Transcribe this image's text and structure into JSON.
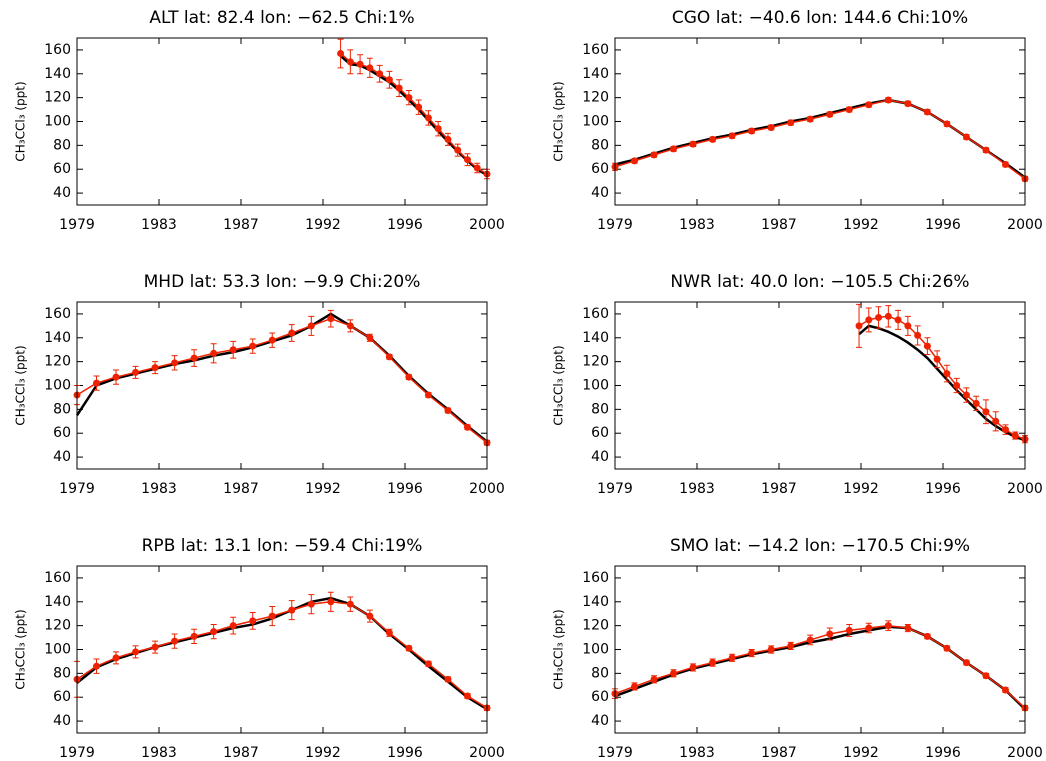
{
  "chart_data": [
    {
      "type": "line",
      "title": "ALT lat: 82.4 lon: −62.5 Chi:1%",
      "y_label": "CH₃CCl₃ (ppt)",
      "xlim": [
        1979,
        2000
      ],
      "xticks": [
        1979,
        {
          "value": 1983.2,
          "label": "1983"
        },
        {
          "value": 1987.4,
          "label": "1987"
        },
        {
          "value": 1991.6,
          "label": "1992"
        },
        {
          "value": 1995.8,
          "label": "1996"
        },
        2000
      ],
      "ylim": [
        30,
        170
      ],
      "yticks": [
        40,
        60,
        80,
        100,
        120,
        140,
        160
      ],
      "x": [
        1992.5,
        1993,
        1993.5,
        1994,
        1994.5,
        1995,
        1995.5,
        1996,
        1996.5,
        1997,
        1997.5,
        1998,
        1998.5,
        1999,
        1999.5,
        2000
      ],
      "series": [
        {
          "color": "#000000",
          "values": [
            155,
            148,
            147,
            143,
            138,
            133,
            126,
            118,
            110,
            101,
            92,
            83,
            75,
            67,
            60,
            55
          ]
        },
        {
          "color": "#ee2200",
          "values": [
            157,
            150,
            148,
            145,
            140,
            135,
            128,
            120,
            112,
            103,
            94,
            85,
            76,
            68,
            61,
            56
          ],
          "errors": [
            12,
            10,
            8,
            8,
            7,
            7,
            7,
            6,
            6,
            6,
            6,
            5,
            5,
            5,
            4,
            4
          ]
        }
      ]
    },
    {
      "type": "line",
      "title": "CGO lat: −40.6 lon: 144.6 Chi:10%",
      "y_label": "CH₃CCl₃ (ppt)",
      "xlim": [
        1979,
        2000
      ],
      "xticks": [
        1979,
        {
          "value": 1983.2,
          "label": "1983"
        },
        {
          "value": 1987.4,
          "label": "1987"
        },
        {
          "value": 1991.6,
          "label": "1992"
        },
        {
          "value": 1995.8,
          "label": "1996"
        },
        2000
      ],
      "ylim": [
        30,
        170
      ],
      "yticks": [
        40,
        60,
        80,
        100,
        120,
        140,
        160
      ],
      "x": [
        1979,
        1980,
        1981,
        1982,
        1983,
        1984,
        1985,
        1986,
        1987,
        1988,
        1989,
        1990,
        1991,
        1992,
        1993,
        1994,
        1995,
        1996,
        1997,
        1998,
        1999,
        2000
      ],
      "series": [
        {
          "color": "#000000",
          "values": [
            64,
            68,
            73,
            78,
            82,
            86,
            89,
            93,
            96,
            100,
            103,
            107,
            111,
            115,
            118,
            115,
            108,
            98,
            87,
            76,
            65,
            53
          ]
        },
        {
          "color": "#ee2200",
          "values": [
            62,
            67,
            72,
            77,
            81,
            85,
            88,
            92,
            95,
            99,
            102,
            106,
            110,
            114,
            118,
            115,
            108,
            98,
            87,
            76,
            64,
            52
          ],
          "errors": [
            3,
            2,
            2,
            2,
            2,
            2,
            2,
            2,
            2,
            2,
            2,
            2,
            2,
            2,
            2,
            2,
            2,
            2,
            2,
            2,
            2,
            2
          ]
        }
      ]
    },
    {
      "type": "line",
      "title": "MHD lat: 53.3 lon: −9.9 Chi:20%",
      "y_label": "CH₃CCl₃ (ppt)",
      "xlim": [
        1979,
        2000
      ],
      "xticks": [
        1979,
        {
          "value": 1983.2,
          "label": "1983"
        },
        {
          "value": 1987.4,
          "label": "1987"
        },
        {
          "value": 1991.6,
          "label": "1992"
        },
        {
          "value": 1995.8,
          "label": "1996"
        },
        2000
      ],
      "ylim": [
        30,
        170
      ],
      "yticks": [
        40,
        60,
        80,
        100,
        120,
        140,
        160
      ],
      "x": [
        1979,
        1980,
        1981,
        1982,
        1983,
        1984,
        1985,
        1986,
        1987,
        1988,
        1989,
        1990,
        1991,
        1992,
        1993,
        1994,
        1995,
        1996,
        1997,
        1998,
        1999,
        2000
      ],
      "series": [
        {
          "color": "#000000",
          "values": [
            75,
            100,
            106,
            110,
            114,
            118,
            121,
            125,
            128,
            132,
            137,
            142,
            150,
            160,
            150,
            140,
            125,
            108,
            93,
            80,
            66,
            53
          ]
        },
        {
          "color": "#ee2200",
          "values": [
            92,
            102,
            107,
            111,
            115,
            119,
            123,
            127,
            130,
            133,
            138,
            144,
            150,
            156,
            150,
            140,
            124,
            107,
            92,
            79,
            65,
            52
          ],
          "errors": [
            8,
            6,
            6,
            5,
            5,
            6,
            7,
            8,
            7,
            6,
            6,
            7,
            8,
            7,
            5,
            3,
            2,
            2,
            2,
            2,
            2,
            2
          ]
        }
      ]
    },
    {
      "type": "line",
      "title": "NWR lat: 40.0 lon: −105.5 Chi:26%",
      "y_label": "CH₃CCl₃ (ppt)",
      "xlim": [
        1979,
        2000
      ],
      "xticks": [
        1979,
        {
          "value": 1983.2,
          "label": "1983"
        },
        {
          "value": 1987.4,
          "label": "1987"
        },
        {
          "value": 1991.6,
          "label": "1992"
        },
        {
          "value": 1995.8,
          "label": "1996"
        },
        2000
      ],
      "ylim": [
        30,
        170
      ],
      "yticks": [
        40,
        60,
        80,
        100,
        120,
        140,
        160
      ],
      "x": [
        1991.5,
        1992,
        1992.5,
        1993,
        1993.5,
        1994,
        1994.5,
        1995,
        1995.5,
        1996,
        1996.5,
        1997,
        1997.5,
        1998,
        1998.5,
        1999,
        1999.5,
        2000
      ],
      "series": [
        {
          "color": "#000000",
          "values": [
            143,
            150,
            148,
            145,
            141,
            136,
            130,
            123,
            114,
            105,
            96,
            88,
            80,
            72,
            66,
            61,
            57,
            54
          ]
        },
        {
          "color": "#ee2200",
          "values": [
            150,
            155,
            157,
            158,
            155,
            150,
            142,
            133,
            122,
            110,
            100,
            92,
            85,
            78,
            70,
            63,
            58,
            55
          ],
          "errors": [
            18,
            10,
            9,
            9,
            8,
            8,
            8,
            7,
            7,
            7,
            6,
            6,
            6,
            10,
            8,
            4,
            3,
            3
          ]
        }
      ]
    },
    {
      "type": "line",
      "title": "RPB lat: 13.1 lon: −59.4 Chi:19%",
      "y_label": "CH₃CCl₃ (ppt)",
      "xlim": [
        1979,
        2000
      ],
      "xticks": [
        1979,
        {
          "value": 1983.2,
          "label": "1983"
        },
        {
          "value": 1987.4,
          "label": "1987"
        },
        {
          "value": 1991.6,
          "label": "1992"
        },
        {
          "value": 1995.8,
          "label": "1996"
        },
        2000
      ],
      "ylim": [
        30,
        170
      ],
      "yticks": [
        40,
        60,
        80,
        100,
        120,
        140,
        160
      ],
      "x": [
        1979,
        1980,
        1981,
        1982,
        1983,
        1984,
        1985,
        1986,
        1987,
        1988,
        1989,
        1990,
        1991,
        1992,
        1993,
        1994,
        1995,
        1996,
        1997,
        1998,
        1999,
        2000
      ],
      "series": [
        {
          "color": "#000000",
          "values": [
            72,
            85,
            92,
            97,
            102,
            106,
            110,
            114,
            118,
            121,
            126,
            133,
            140,
            143,
            138,
            128,
            113,
            100,
            86,
            73,
            60,
            50
          ]
        },
        {
          "color": "#ee2200",
          "values": [
            75,
            86,
            93,
            98,
            102,
            107,
            111,
            115,
            120,
            124,
            128,
            133,
            138,
            140,
            138,
            128,
            114,
            101,
            88,
            75,
            61,
            51
          ],
          "errors": [
            15,
            6,
            5,
            5,
            5,
            6,
            6,
            6,
            7,
            7,
            8,
            8,
            8,
            8,
            6,
            5,
            3,
            2,
            2,
            2,
            2,
            2
          ]
        }
      ]
    },
    {
      "type": "line",
      "title": "SMO lat: −14.2 lon: −170.5 Chi:9%",
      "y_label": "CH₃CCl₃ (ppt)",
      "xlim": [
        1979,
        2000
      ],
      "xticks": [
        1979,
        {
          "value": 1983.2,
          "label": "1983"
        },
        {
          "value": 1987.4,
          "label": "1987"
        },
        {
          "value": 1991.6,
          "label": "1992"
        },
        {
          "value": 1995.8,
          "label": "1996"
        },
        2000
      ],
      "ylim": [
        30,
        170
      ],
      "yticks": [
        40,
        60,
        80,
        100,
        120,
        140,
        160
      ],
      "x": [
        1979,
        1980,
        1981,
        1982,
        1983,
        1984,
        1985,
        1986,
        1987,
        1988,
        1989,
        1990,
        1991,
        1992,
        1993,
        1994,
        1995,
        1996,
        1997,
        1998,
        1999,
        2000
      ],
      "series": [
        {
          "color": "#000000",
          "values": [
            61,
            67,
            73,
            79,
            84,
            88,
            92,
            96,
            99,
            102,
            106,
            109,
            113,
            116,
            119,
            118,
            111,
            101,
            89,
            78,
            66,
            50
          ]
        },
        {
          "color": "#ee2200",
          "values": [
            63,
            69,
            75,
            80,
            85,
            89,
            93,
            97,
            100,
            103,
            108,
            113,
            116,
            118,
            120,
            118,
            111,
            101,
            89,
            78,
            66,
            51
          ],
          "errors": [
            4,
            3,
            3,
            3,
            3,
            3,
            3,
            3,
            3,
            3,
            4,
            5,
            5,
            4,
            4,
            3,
            2,
            2,
            2,
            2,
            2,
            2
          ]
        }
      ]
    }
  ]
}
